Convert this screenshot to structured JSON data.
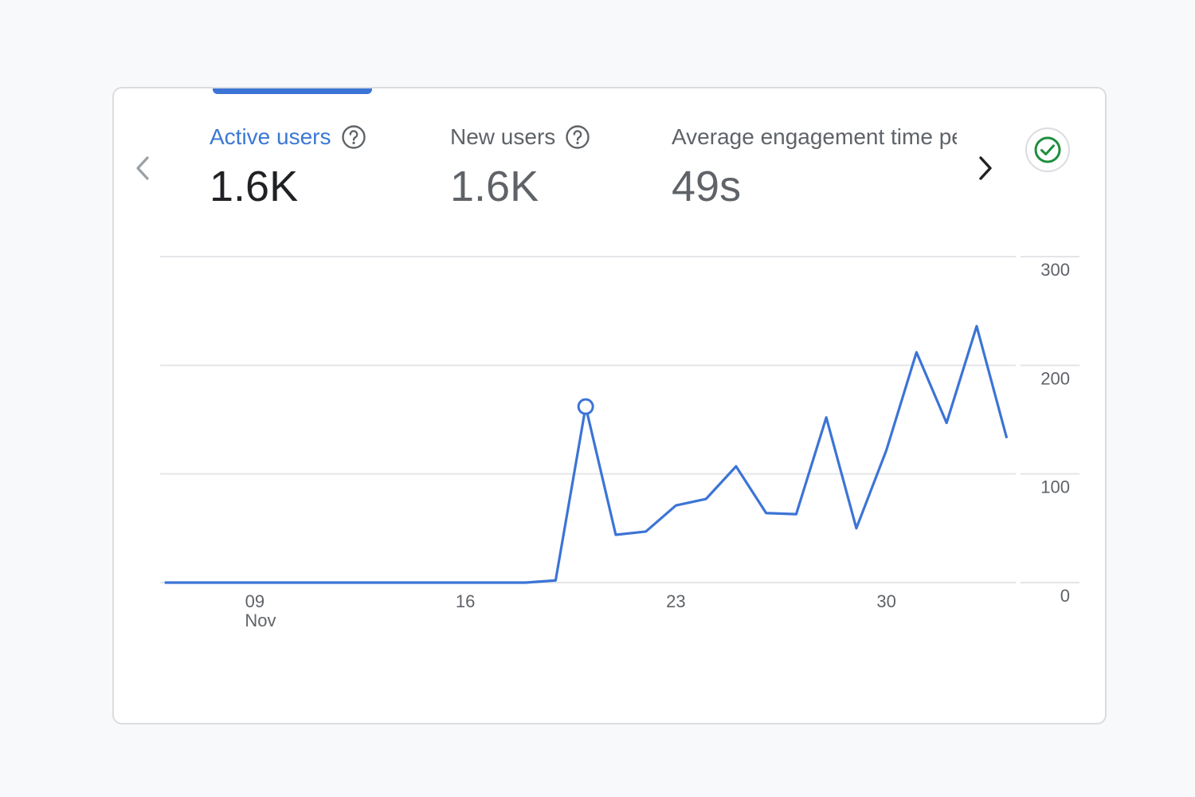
{
  "metrics": [
    {
      "label": "Active users",
      "value": "1.6K",
      "active": true
    },
    {
      "label": "New users",
      "value": "1.6K",
      "active": false
    },
    {
      "label": "Average engagement time per active user",
      "value": "49s",
      "active": false
    }
  ],
  "colors": {
    "accent": "#3b78d4",
    "line": "#3c74d6",
    "status_ok": "#1e8e3e",
    "grid": "#e3e5e8",
    "text_muted": "#5f6368"
  },
  "icons": {
    "prev": "chevron-left-icon",
    "next": "chevron-right-icon",
    "help": "help-circle-icon",
    "status": "check-circle-icon"
  },
  "chart_data": {
    "type": "line",
    "title": "",
    "series": [
      {
        "name": "Active users",
        "x": [
          6,
          7,
          8,
          9,
          10,
          11,
          12,
          13,
          14,
          15,
          16,
          17,
          18,
          19,
          20,
          21,
          22,
          23,
          24,
          25,
          26,
          27,
          28,
          29,
          30,
          31,
          32,
          33,
          34
        ],
        "values": [
          0,
          0,
          0,
          0,
          0,
          0,
          0,
          0,
          0,
          0,
          0,
          0,
          0,
          2,
          162,
          44,
          47,
          71,
          77,
          107,
          64,
          63,
          152,
          50,
          122,
          212,
          147,
          236,
          133
        ]
      }
    ],
    "highlight_point": {
      "x": 20,
      "y": 162
    },
    "xlim": [
      5.85,
      34.3
    ],
    "ylim": [
      0,
      300
    ],
    "x_ticks": [
      {
        "x": 9,
        "label": "09",
        "sublabel": "Nov"
      },
      {
        "x": 16,
        "label": "16",
        "sublabel": ""
      },
      {
        "x": 23,
        "label": "23",
        "sublabel": ""
      },
      {
        "x": 30,
        "label": "30",
        "sublabel": ""
      }
    ],
    "y_ticks": [
      {
        "value": 0,
        "label": "0"
      },
      {
        "value": 100,
        "label": "100"
      },
      {
        "value": 200,
        "label": "200"
      },
      {
        "value": 300,
        "label": "300"
      }
    ],
    "xlabel": "",
    "ylabel": "",
    "grid": true,
    "y_axis_position": "right"
  }
}
